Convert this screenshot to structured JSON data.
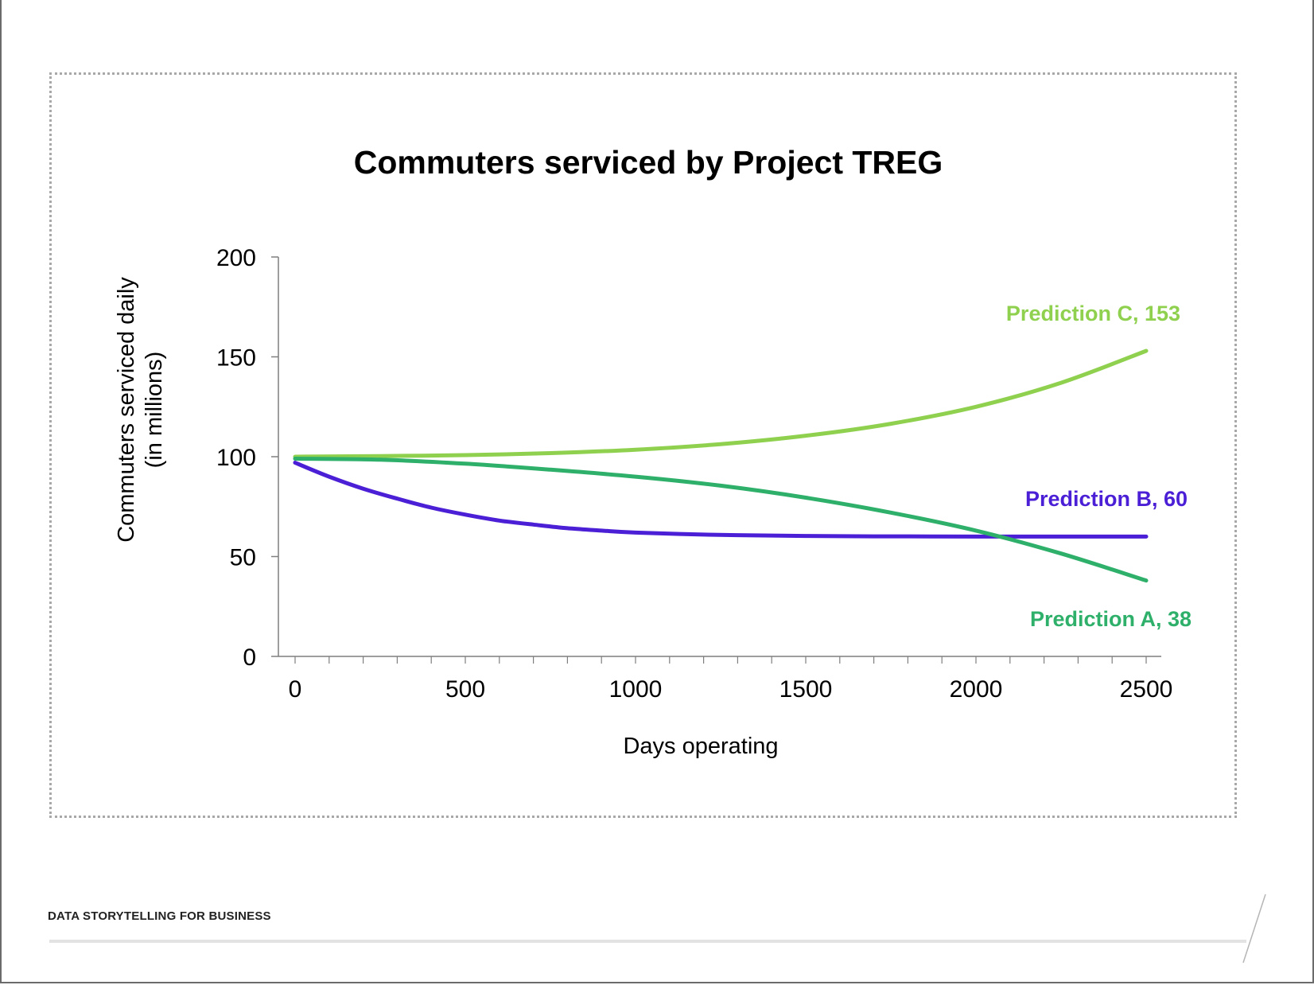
{
  "footer": {
    "label": "DATA STORYTELLING FOR BUSINESS"
  },
  "colors": {
    "prediction_a": "#2eb06a",
    "prediction_b": "#4b1fd6",
    "prediction_c": "#8fd14f",
    "axis": "#7f7f7f",
    "text": "#000000"
  },
  "chart_data": {
    "type": "line",
    "title": "Commuters serviced by Project TREG",
    "xlabel": "Days operating",
    "ylabel": [
      "Commuters serviced daily",
      "(in millions)"
    ],
    "xlim": [
      0,
      2500
    ],
    "ylim": [
      0,
      200
    ],
    "xticks": [
      0,
      500,
      1000,
      1500,
      2000,
      2500
    ],
    "yticks": [
      0,
      50,
      100,
      150,
      200
    ],
    "grid": false,
    "legend": "direct labels at line ends",
    "series": [
      {
        "name": "Prediction C",
        "label": "Prediction C, 153",
        "color": "#8fd14f",
        "x": [
          0,
          250,
          500,
          750,
          1000,
          1250,
          1500,
          1750,
          2000,
          2250,
          2500
        ],
        "y": [
          100,
          100.3,
          100.8,
          101.8,
          103.5,
          106.3,
          110.5,
          116.5,
          125,
          137,
          153
        ]
      },
      {
        "name": "Prediction B",
        "label": "Prediction B, 60",
        "color": "#4b1fd6",
        "x": [
          0,
          100,
          200,
          300,
          400,
          500,
          600,
          700,
          800,
          900,
          1000,
          1200,
          1400,
          1600,
          1800,
          2000,
          2250,
          2500
        ],
        "y": [
          97,
          90,
          84,
          79,
          74.5,
          71,
          68,
          66,
          64.2,
          63,
          62,
          61,
          60.5,
          60.2,
          60.1,
          60,
          60,
          60
        ]
      },
      {
        "name": "Prediction A",
        "label": "Prediction A, 38",
        "color": "#2eb06a",
        "x": [
          0,
          250,
          500,
          750,
          1000,
          1250,
          1500,
          1750,
          2000,
          2250,
          2500
        ],
        "y": [
          99,
          98.5,
          96.5,
          93.5,
          90,
          85.5,
          79.5,
          72,
          63,
          51.5,
          38
        ]
      }
    ]
  }
}
